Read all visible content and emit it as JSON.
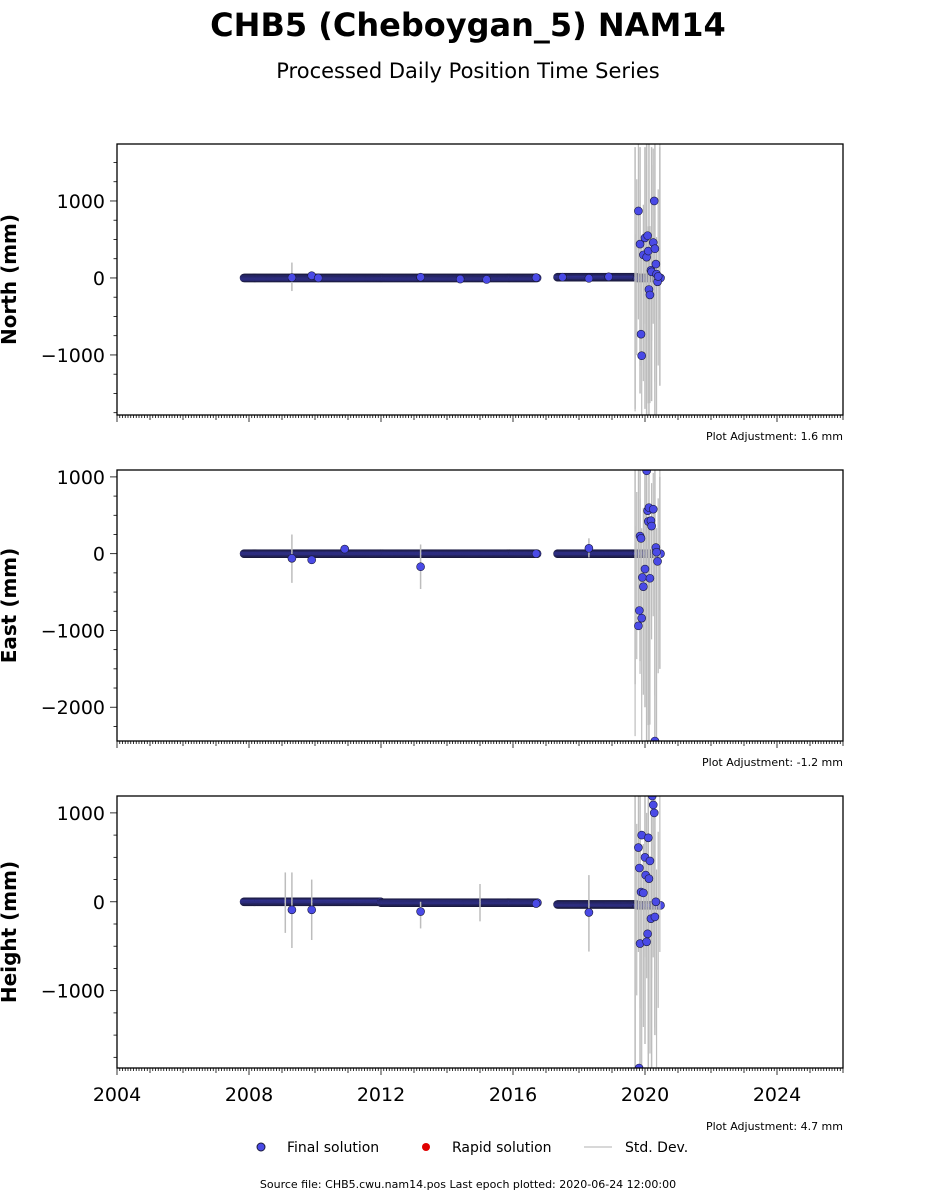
{
  "figure": {
    "title": "CHB5 (Cheboygan_5) NAM14",
    "subtitle": "Processed Daily Position Time Series",
    "source_note": "Source file: CHB5.cwu.nam14.pos  Last epoch plotted: 2020-06-24 12:00:00"
  },
  "legend": {
    "placement": "bottom-center",
    "items": [
      {
        "label": "Final solution",
        "marker": "dot",
        "color": "#4a4ae6"
      },
      {
        "label": "Rapid solution",
        "marker": "dot",
        "color": "#e00000"
      },
      {
        "label": "Std. Dev.",
        "marker": "line",
        "color": "#cccccc"
      }
    ]
  },
  "colors": {
    "final": "#4a4ae6",
    "final_edge": "#1a1a3a",
    "stddev": "#bdbdbd",
    "rapid": "#e00000"
  },
  "chart_data": [
    {
      "type": "scatter",
      "panel": "north",
      "ylabel": "North (mm)",
      "plot_adjustment": "Plot Adjustment: 1.6 mm",
      "xlim": [
        2004,
        2026
      ],
      "ylim": [
        -1780,
        1740
      ],
      "xticks": [
        2004,
        2008,
        2012,
        2016,
        2020,
        2024
      ],
      "yticks": [
        -1000,
        0,
        1000
      ],
      "ytick_labels": [
        "−1000",
        "0",
        "1000"
      ],
      "dense_segments": [
        {
          "x": [
            2007.85,
            2016.75
          ],
          "y": 0
        },
        {
          "x": [
            2017.35,
            2019.75
          ],
          "y": 10
        },
        {
          "x": [
            2019.75,
            2020.48
          ],
          "y": 0
        }
      ],
      "points": [
        [
          2009.3,
          5
        ],
        [
          2009.9,
          30
        ],
        [
          2010.1,
          0
        ],
        [
          2013.2,
          10
        ],
        [
          2014.4,
          -15
        ],
        [
          2015.2,
          -20
        ],
        [
          2016.7,
          5
        ],
        [
          2017.5,
          10
        ],
        [
          2018.3,
          -5
        ],
        [
          2018.9,
          15
        ],
        [
          2019.8,
          870
        ],
        [
          2019.85,
          440
        ],
        [
          2019.88,
          -730
        ],
        [
          2019.9,
          -1010
        ],
        [
          2019.95,
          300
        ],
        [
          2020.0,
          520
        ],
        [
          2020.05,
          270
        ],
        [
          2020.08,
          550
        ],
        [
          2020.1,
          350
        ],
        [
          2020.12,
          -150
        ],
        [
          2020.15,
          -220
        ],
        [
          2020.18,
          100
        ],
        [
          2020.2,
          80
        ],
        [
          2020.25,
          460
        ],
        [
          2020.28,
          1000
        ],
        [
          2020.3,
          380
        ],
        [
          2020.33,
          180
        ],
        [
          2020.35,
          50
        ],
        [
          2020.38,
          -50
        ],
        [
          2020.4,
          20
        ]
      ],
      "stddev": [
        [
          2009.3,
          -170,
          200
        ],
        [
          2019.7,
          -1700,
          1700
        ],
        [
          2019.85,
          -1500,
          1700
        ],
        [
          2020.0,
          -1700,
          1700
        ],
        [
          2020.05,
          -1780,
          1740
        ],
        [
          2020.12,
          -1780,
          1740
        ],
        [
          2020.2,
          -1600,
          1700
        ],
        [
          2020.3,
          -1780,
          1740
        ],
        [
          2020.45,
          -1400,
          1700
        ]
      ]
    },
    {
      "type": "scatter",
      "panel": "east",
      "ylabel": "East (mm)",
      "plot_adjustment": "Plot Adjustment: -1.2 mm",
      "xlim": [
        2004,
        2026
      ],
      "ylim": [
        -2440,
        1090
      ],
      "xticks": [
        2004,
        2008,
        2012,
        2016,
        2020,
        2024
      ],
      "yticks": [
        -2000,
        -1000,
        0,
        1000
      ],
      "ytick_labels": [
        "−2000",
        "−1000",
        "0",
        "1000"
      ],
      "dense_segments": [
        {
          "x": [
            2007.85,
            2016.75
          ],
          "y": 0
        },
        {
          "x": [
            2017.35,
            2019.75
          ],
          "y": 0
        },
        {
          "x": [
            2019.75,
            2020.48
          ],
          "y": 0
        }
      ],
      "points": [
        [
          2009.3,
          -60
        ],
        [
          2009.9,
          -80
        ],
        [
          2010.9,
          60
        ],
        [
          2013.2,
          -170
        ],
        [
          2016.7,
          0
        ],
        [
          2018.3,
          70
        ],
        [
          2019.8,
          -940
        ],
        [
          2019.83,
          -740
        ],
        [
          2019.85,
          230
        ],
        [
          2019.88,
          200
        ],
        [
          2019.9,
          -840
        ],
        [
          2019.92,
          -310
        ],
        [
          2019.95,
          -430
        ],
        [
          2020.0,
          -200
        ],
        [
          2020.05,
          1080
        ],
        [
          2020.08,
          560
        ],
        [
          2020.1,
          420
        ],
        [
          2020.12,
          600
        ],
        [
          2020.15,
          -320
        ],
        [
          2020.18,
          430
        ],
        [
          2020.2,
          360
        ],
        [
          2020.25,
          580
        ],
        [
          2020.3,
          -2440
        ],
        [
          2020.33,
          80
        ],
        [
          2020.35,
          20
        ],
        [
          2020.38,
          -100
        ]
      ],
      "stddev": [
        [
          2009.3,
          -380,
          250
        ],
        [
          2013.2,
          -460,
          120
        ],
        [
          2018.3,
          -50,
          200
        ],
        [
          2019.7,
          -1700,
          1090
        ],
        [
          2019.85,
          -1400,
          1090
        ],
        [
          2020.0,
          -2000,
          1090
        ],
        [
          2020.05,
          -2440,
          1090
        ],
        [
          2020.12,
          -2440,
          1090
        ],
        [
          2020.3,
          -2440,
          1090
        ],
        [
          2020.45,
          -1500,
          1000
        ]
      ]
    },
    {
      "type": "scatter",
      "panel": "height",
      "ylabel": "Height (mm)",
      "plot_adjustment": "Plot Adjustment: 4.7 mm",
      "xlim": [
        2004,
        2026
      ],
      "ylim": [
        -1870,
        1190
      ],
      "xticks": [
        2004,
        2008,
        2012,
        2016,
        2020,
        2024
      ],
      "xtick_labels": [
        "2004",
        "2008",
        "2012",
        "2016",
        "2020",
        "2024"
      ],
      "yticks": [
        -1000,
        0,
        1000
      ],
      "ytick_labels": [
        "−1000",
        "0",
        "1000"
      ],
      "dense_segments": [
        {
          "x": [
            2007.85,
            2012.0
          ],
          "y": 0
        },
        {
          "x": [
            2012.0,
            2016.75
          ],
          "y": -10
        },
        {
          "x": [
            2017.35,
            2019.75
          ],
          "y": -30
        },
        {
          "x": [
            2019.75,
            2020.48
          ],
          "y": -40
        }
      ],
      "points": [
        [
          2009.3,
          -90
        ],
        [
          2009.9,
          -90
        ],
        [
          2013.2,
          -110
        ],
        [
          2016.7,
          -20
        ],
        [
          2018.3,
          -120
        ],
        [
          2019.8,
          610
        ],
        [
          2019.83,
          380
        ],
        [
          2019.85,
          -470
        ],
        [
          2019.88,
          110
        ],
        [
          2019.9,
          750
        ],
        [
          2019.95,
          100
        ],
        [
          2020.0,
          500
        ],
        [
          2020.02,
          300
        ],
        [
          2020.05,
          -450
        ],
        [
          2020.08,
          -360
        ],
        [
          2020.1,
          720
        ],
        [
          2020.12,
          260
        ],
        [
          2020.15,
          460
        ],
        [
          2020.18,
          -190
        ],
        [
          2020.22,
          1190
        ],
        [
          2020.25,
          1090
        ],
        [
          2020.28,
          1000
        ],
        [
          2020.3,
          -170
        ],
        [
          2020.33,
          0
        ],
        [
          2019.82,
          -1870
        ]
      ],
      "stddev": [
        [
          2009.1,
          -350,
          330
        ],
        [
          2009.3,
          -520,
          330
        ],
        [
          2009.9,
          -430,
          250
        ],
        [
          2013.2,
          -300,
          0
        ],
        [
          2015.0,
          -220,
          200
        ],
        [
          2018.3,
          -560,
          300
        ],
        [
          2019.7,
          -1870,
          1190
        ],
        [
          2019.85,
          -1870,
          1190
        ],
        [
          2020.0,
          -1600,
          1190
        ],
        [
          2020.1,
          -1870,
          1190
        ],
        [
          2020.2,
          -1870,
          1190
        ],
        [
          2020.3,
          -1500,
          1190
        ]
      ]
    }
  ]
}
